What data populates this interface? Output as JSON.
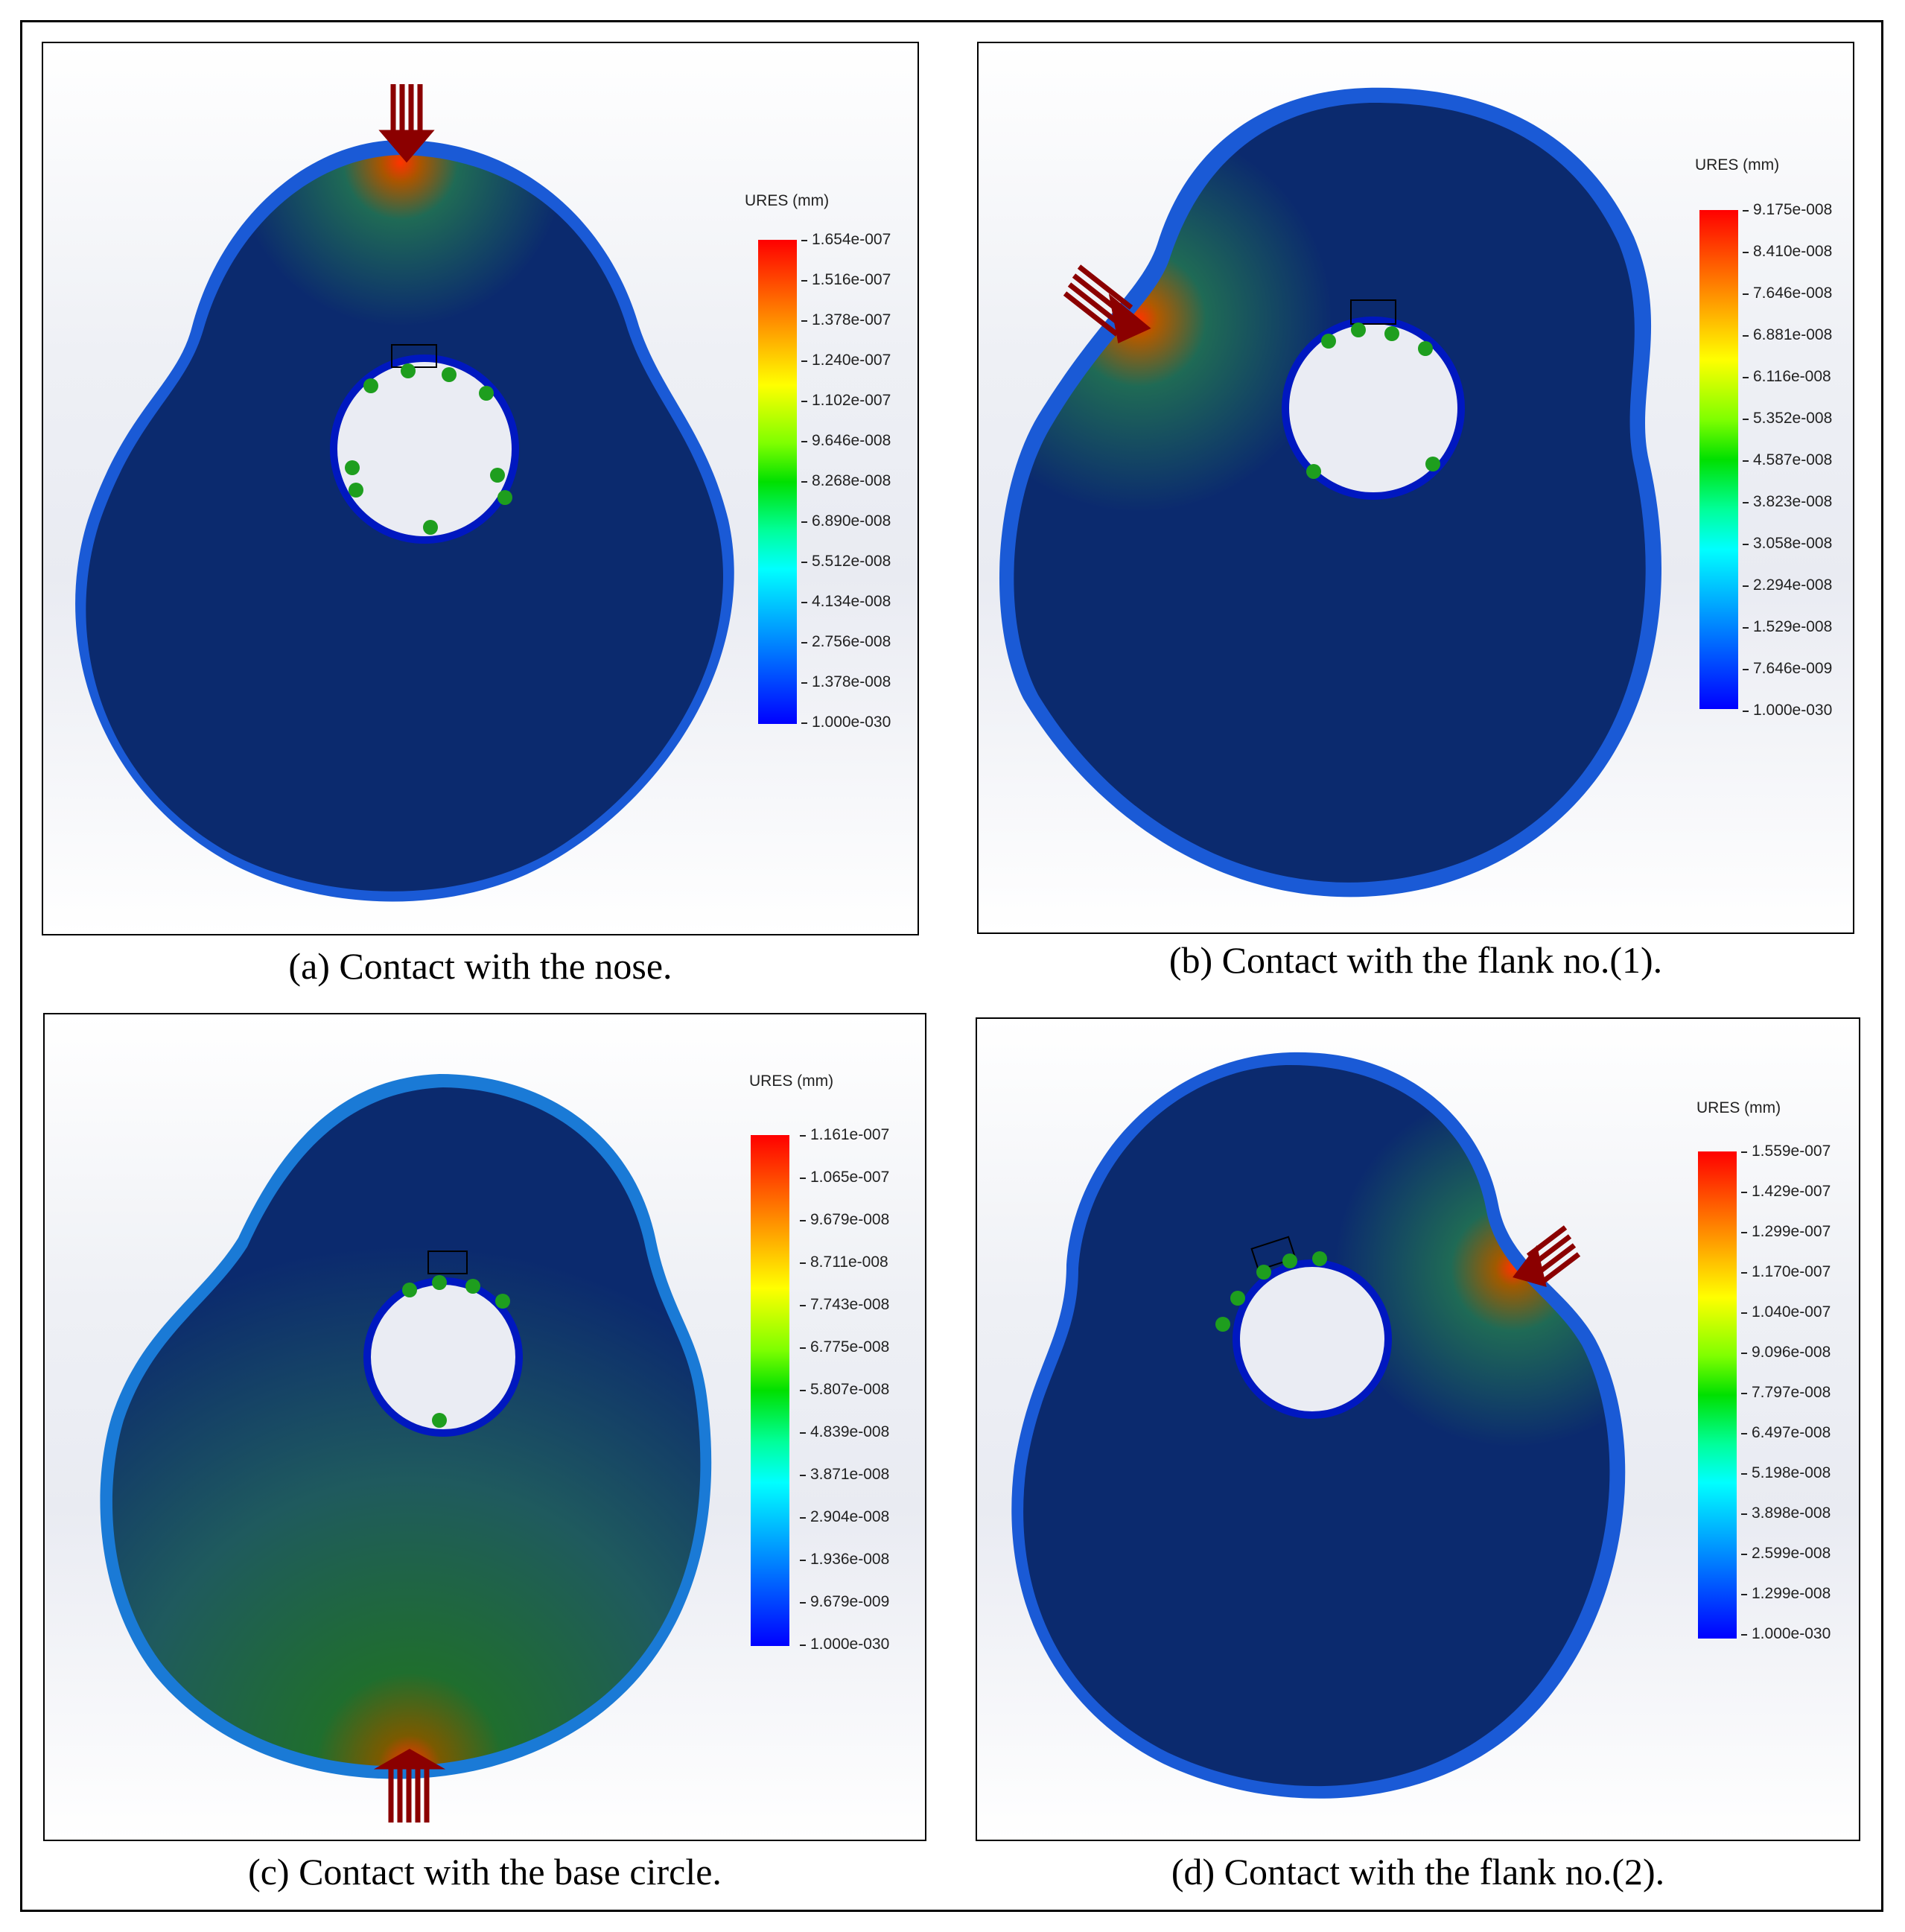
{
  "panels": [
    {
      "id": "a",
      "caption": "(a) Contact with the nose.",
      "legend": {
        "title": "URES (mm)",
        "values": [
          "1.654e-007",
          "1.516e-007",
          "1.378e-007",
          "1.240e-007",
          "1.102e-007",
          "9.646e-008",
          "8.268e-008",
          "6.890e-008",
          "5.512e-008",
          "4.134e-008",
          "2.756e-008",
          "1.378e-008",
          "1.000e-030"
        ]
      }
    },
    {
      "id": "b",
      "caption": "(b) Contact with the flank no.(1).",
      "legend": {
        "title": "URES (mm)",
        "values": [
          "9.175e-008",
          "8.410e-008",
          "7.646e-008",
          "6.881e-008",
          "6.116e-008",
          "5.352e-008",
          "4.587e-008",
          "3.823e-008",
          "3.058e-008",
          "2.294e-008",
          "1.529e-008",
          "7.646e-009",
          "1.000e-030"
        ]
      }
    },
    {
      "id": "c",
      "caption": "(c) Contact with the base circle.",
      "legend": {
        "title": "URES (mm)",
        "values": [
          "1.161e-007",
          "1.065e-007",
          "9.679e-008",
          "8.711e-008",
          "7.743e-008",
          "6.775e-008",
          "5.807e-008",
          "4.839e-008",
          "3.871e-008",
          "2.904e-008",
          "1.936e-008",
          "9.679e-009",
          "1.000e-030"
        ]
      }
    },
    {
      "id": "d",
      "caption": "(d) Contact with the flank no.(2).",
      "legend": {
        "title": "URES (mm)",
        "values": [
          "1.559e-007",
          "1.429e-007",
          "1.299e-007",
          "1.170e-007",
          "1.040e-007",
          "9.096e-008",
          "7.797e-008",
          "6.497e-008",
          "5.198e-008",
          "3.898e-008",
          "2.599e-008",
          "1.299e-008",
          "1.000e-030"
        ]
      }
    }
  ],
  "colors": {
    "cam_body": "#0b2a6e",
    "cam_edge": "#1a5ad6",
    "hotspot": "#ff3300",
    "fixture": "#1e9e1e",
    "load_arrow": "#8b0000"
  }
}
